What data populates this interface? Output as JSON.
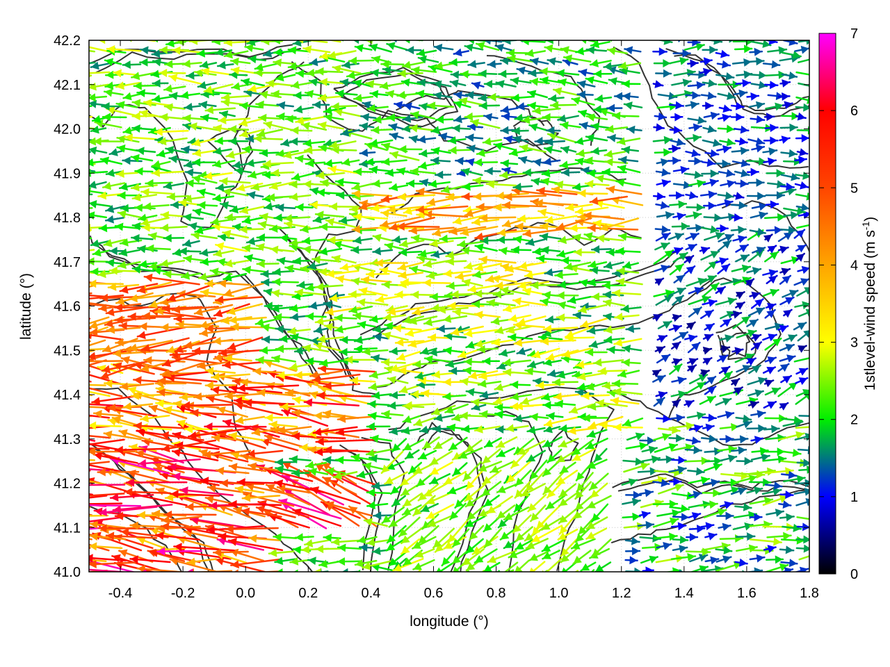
{
  "chart_data": {
    "type": "vector-field",
    "xlabel": "longitude (°)",
    "ylabel": "latitude (°)",
    "xlim": [
      -0.5,
      1.8
    ],
    "ylim": [
      41.0,
      42.2
    ],
    "xticks": [
      "-0.4",
      "-0.2",
      "0.0",
      "0.2",
      "0.4",
      "0.6",
      "0.8",
      "1.0",
      "1.2",
      "1.4",
      "1.6",
      "1.8"
    ],
    "yticks": [
      "41.0",
      "41.1",
      "41.2",
      "41.3",
      "41.4",
      "41.5",
      "41.6",
      "41.7",
      "41.8",
      "41.9",
      "42.0",
      "42.1",
      "42.2"
    ],
    "grid": true,
    "colorbar": {
      "title_main": "1stlevel-wind speed (m s",
      "title_sup": "-1",
      "title_end": ")",
      "range": [
        0,
        7
      ],
      "ticks": [
        "0",
        "1",
        "2",
        "3",
        "4",
        "5",
        "6",
        "7"
      ],
      "stops": [
        {
          "value": 0,
          "color": "#000000"
        },
        {
          "value": 1,
          "color": "#0000ff"
        },
        {
          "value": 2,
          "color": "#00ee00"
        },
        {
          "value": 3,
          "color": "#ffff00"
        },
        {
          "value": 4,
          "color": "#ffa500"
        },
        {
          "value": 5,
          "color": "#ff4500"
        },
        {
          "value": 6,
          "color": "#ff0000"
        },
        {
          "value": 7,
          "color": "#ff00ff"
        }
      ]
    },
    "vector_regions": [
      {
        "x": [
          -0.5,
          0.15
        ],
        "y": [
          41.0,
          41.25
        ],
        "u": -1.0,
        "v": 0.12,
        "speed": [
          3.5,
          6.8
        ]
      },
      {
        "x": [
          0.15,
          0.45
        ],
        "y": [
          41.08,
          41.22
        ],
        "u": -0.9,
        "v": 0.4,
        "speed": [
          4.5,
          6.8
        ]
      },
      {
        "x": [
          -0.5,
          0.45
        ],
        "y": [
          41.25,
          41.45
        ],
        "u": -1.0,
        "v": 0.08,
        "speed": [
          3.0,
          6.2
        ]
      },
      {
        "x": [
          -0.5,
          0.1
        ],
        "y": [
          41.45,
          41.65
        ],
        "u": -1.0,
        "v": -0.1,
        "speed": [
          3.5,
          5.5
        ]
      },
      {
        "x": [
          0.45,
          1.3
        ],
        "y": [
          41.75,
          41.87
        ],
        "u": -1.0,
        "v": -0.05,
        "speed": [
          3.0,
          5.0
        ]
      },
      {
        "x": [
          0.35,
          1.0
        ],
        "y": [
          41.58,
          41.72
        ],
        "u": -1.0,
        "v": 0.0,
        "speed": [
          2.2,
          3.5
        ]
      },
      {
        "x": [
          -0.5,
          0.4
        ],
        "y": [
          41.72,
          42.2
        ],
        "u": -1.0,
        "v": 0.0,
        "speed": [
          1.5,
          3.0
        ]
      },
      {
        "x": [
          0.4,
          1.3
        ],
        "y": [
          41.88,
          42.2
        ],
        "u": -1.0,
        "v": 0.05,
        "speed": [
          1.2,
          2.6
        ]
      },
      {
        "x": [
          1.3,
          1.8
        ],
        "y": [
          41.75,
          42.2
        ],
        "u": 1.0,
        "v": 0.0,
        "speed": [
          0.8,
          2.0
        ]
      },
      {
        "x": [
          1.3,
          1.8
        ],
        "y": [
          41.35,
          41.75
        ],
        "u": 0.6,
        "v": 0.3,
        "speed": [
          0.5,
          2.0
        ]
      },
      {
        "x": [
          0.55,
          1.3
        ],
        "y": [
          41.3,
          41.58
        ],
        "u": -1.0,
        "v": -0.1,
        "speed": [
          1.5,
          3.3
        ]
      },
      {
        "x": [
          0.5,
          1.2
        ],
        "y": [
          41.0,
          41.3
        ],
        "u": -0.7,
        "v": -0.5,
        "speed": [
          1.8,
          3.0
        ]
      },
      {
        "x": [
          1.2,
          1.8
        ],
        "y": [
          41.0,
          41.35
        ],
        "u": 1.0,
        "v": 0.1,
        "speed": [
          1.0,
          2.8
        ]
      }
    ]
  }
}
